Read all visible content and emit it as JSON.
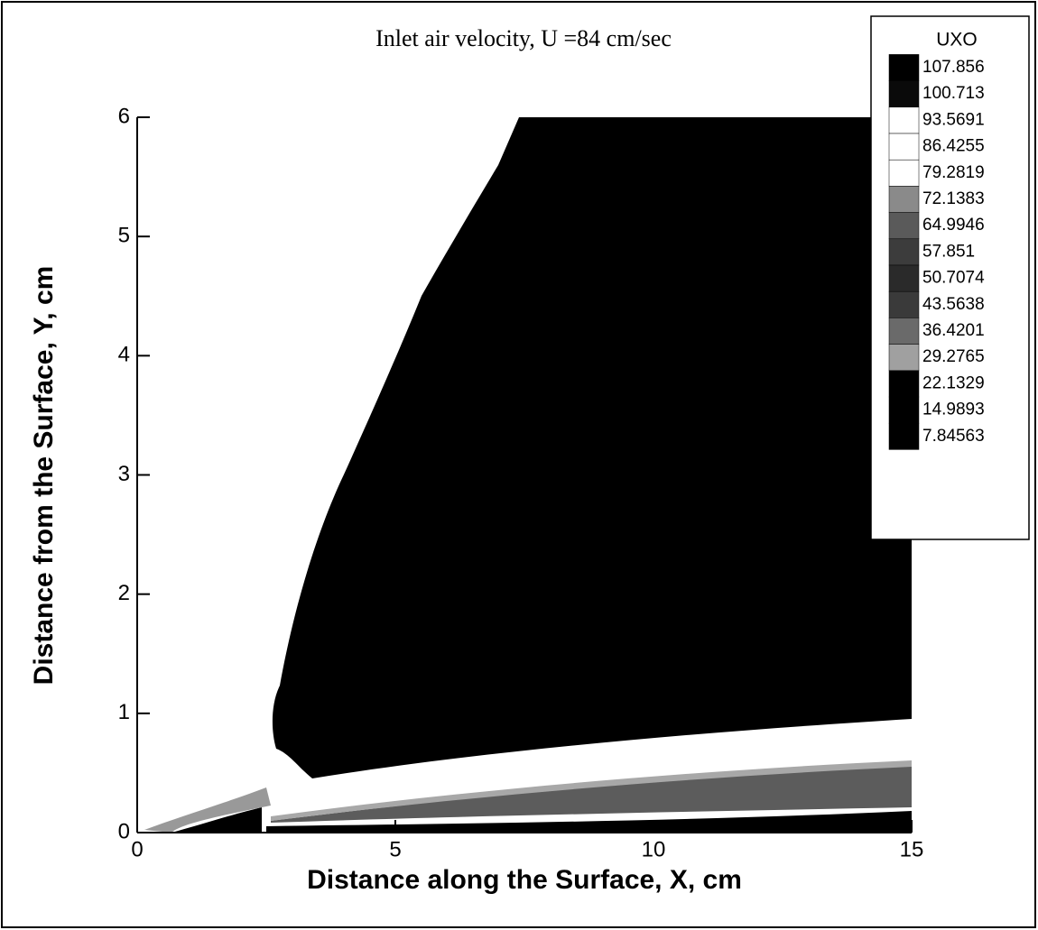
{
  "chart_data": {
    "type": "contour",
    "title": "Inlet air velocity, U =84 cm/sec",
    "xlabel": "Distance along the Surface, X, cm",
    "ylabel": "Distance from the Surface, Y, cm",
    "xlim": [
      0,
      15
    ],
    "ylim": [
      0,
      6
    ],
    "xticks": [
      0,
      5,
      10,
      15
    ],
    "yticks": [
      0,
      1,
      2,
      3,
      4,
      5,
      6
    ],
    "legend": {
      "title": "UXO",
      "levels": [
        107.856,
        100.713,
        93.5691,
        86.4255,
        79.2819,
        72.1383,
        64.9946,
        57.851,
        50.7074,
        43.5638,
        36.4201,
        29.2765,
        22.1329,
        14.9893,
        7.84563
      ],
      "colors": [
        "#000000",
        "#0a0a0a",
        "#ffffff",
        "#ffffff",
        "#ffffff",
        "#8a8a8a",
        "#5a5a5a",
        "#3c3c3c",
        "#2a2a2a",
        "#3a3a3a",
        "#6a6a6a",
        "#a0a0a0",
        "#000000",
        "#000000",
        "#000000"
      ]
    }
  }
}
